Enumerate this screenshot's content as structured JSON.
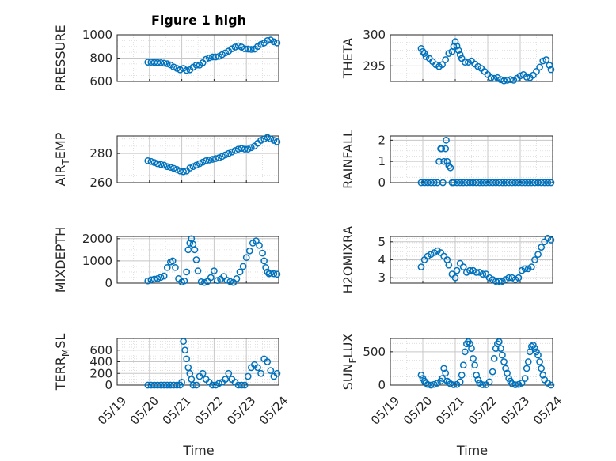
{
  "figure": {
    "title": "Figure 1 high"
  },
  "colors": {
    "marker": "#0072BD",
    "axis": "#262626",
    "grid": "#d9d9d9"
  },
  "chart_data": [
    {
      "type": "scatter",
      "id": "pressure",
      "title": "Figure 1 high",
      "ylabel": "PRESSURE",
      "xlabel": "",
      "ylim": [
        600,
        1000
      ],
      "yticks": [
        600,
        800,
        1000
      ],
      "grid": true,
      "x": [
        19.95,
        20.05,
        20.15,
        20.25,
        20.35,
        20.45,
        20.55,
        20.65,
        20.75,
        20.85,
        20.95,
        21.05,
        21.15,
        21.25,
        21.35,
        21.45,
        21.55,
        21.65,
        21.75,
        21.85,
        21.95,
        22.05,
        22.15,
        22.25,
        22.35,
        22.45,
        22.55,
        22.65,
        22.75,
        22.85,
        22.95,
        23.05,
        23.15,
        23.25,
        23.35,
        23.45,
        23.55,
        23.65,
        23.75,
        23.85,
        23.95
      ],
      "y": [
        765,
        765,
        763,
        762,
        760,
        757,
        752,
        742,
        724,
        712,
        700,
        712,
        695,
        700,
        722,
        740,
        740,
        760,
        790,
        802,
        810,
        810,
        815,
        830,
        845,
        860,
        880,
        895,
        905,
        895,
        880,
        878,
        875,
        878,
        900,
        918,
        930,
        950,
        955,
        940,
        930
      ]
    },
    {
      "type": "scatter",
      "id": "theta",
      "title": "",
      "ylabel": "THETA",
      "xlabel": "",
      "ylim": [
        292.5,
        300
      ],
      "yticks": [
        295,
        300
      ],
      "grid": true,
      "x": [
        19.95,
        20.0,
        20.05,
        20.1,
        20.2,
        20.3,
        20.4,
        20.5,
        20.6,
        20.7,
        20.8,
        20.9,
        20.95,
        21.0,
        21.05,
        21.1,
        21.15,
        21.2,
        21.3,
        21.4,
        21.5,
        21.6,
        21.7,
        21.8,
        21.9,
        22.0,
        22.1,
        22.2,
        22.3,
        22.4,
        22.5,
        22.6,
        22.7,
        22.8,
        22.9,
        23.0,
        23.1,
        23.2,
        23.3,
        23.4,
        23.5,
        23.6,
        23.7,
        23.8,
        23.9,
        23.95
      ],
      "y": [
        297.8,
        297.3,
        297.0,
        296.5,
        296.2,
        295.7,
        295.2,
        294.9,
        295.2,
        296.0,
        297.0,
        297.3,
        298.1,
        298.9,
        298.2,
        297.5,
        296.8,
        296.2,
        295.6,
        295.6,
        295.8,
        295.3,
        294.9,
        294.6,
        294.1,
        293.6,
        293.1,
        293.0,
        293.1,
        292.8,
        292.6,
        292.7,
        292.8,
        292.7,
        293.0,
        293.4,
        293.6,
        293.2,
        293.1,
        293.5,
        294.1,
        294.8,
        295.8,
        296.0,
        295.1,
        294.4
      ]
    },
    {
      "type": "scatter",
      "id": "air_temp",
      "title": "",
      "ylabel": "AIR_TEMP",
      "ylabel_main": "AIR",
      "ylabel_sub": "T",
      "ylabel_rest": "EMP",
      "xlabel": "",
      "ylim": [
        260,
        292
      ],
      "yticks": [
        260,
        280
      ],
      "grid": true,
      "x": [
        19.95,
        20.05,
        20.15,
        20.25,
        20.35,
        20.45,
        20.55,
        20.65,
        20.75,
        20.85,
        20.95,
        21.05,
        21.15,
        21.25,
        21.35,
        21.45,
        21.55,
        21.65,
        21.75,
        21.85,
        21.95,
        22.05,
        22.15,
        22.25,
        22.35,
        22.45,
        22.55,
        22.65,
        22.75,
        22.85,
        22.95,
        23.05,
        23.15,
        23.25,
        23.35,
        23.45,
        23.55,
        23.65,
        23.75,
        23.85,
        23.95
      ],
      "y": [
        275,
        274.5,
        273.8,
        273,
        272.5,
        272,
        271,
        270.5,
        269.8,
        269,
        268,
        267.5,
        268,
        270,
        271,
        272,
        273,
        274,
        275,
        275.5,
        276,
        276.5,
        277,
        278,
        279,
        280,
        281,
        282,
        283,
        283.5,
        283,
        283,
        284,
        285,
        287,
        289,
        290,
        291,
        290,
        289,
        288
      ]
    },
    {
      "type": "scatter",
      "id": "rainfall",
      "title": "",
      "ylabel": "RAINFALL",
      "xlabel": "",
      "ylim": [
        0,
        2.2
      ],
      "yticks": [
        0,
        1,
        2
      ],
      "grid": true,
      "x": [
        19.95,
        20.05,
        20.15,
        20.25,
        20.35,
        20.45,
        20.5,
        20.55,
        20.58,
        20.62,
        20.65,
        20.7,
        20.72,
        20.75,
        20.8,
        20.85,
        20.9,
        20.95,
        21.05,
        21.15,
        21.25,
        21.35,
        21.45,
        21.55,
        21.65,
        21.75,
        21.85,
        21.95,
        22.05,
        22.15,
        22.25,
        22.35,
        22.45,
        22.55,
        22.65,
        22.75,
        22.85,
        22.95,
        23.05,
        23.15,
        23.25,
        23.35,
        23.45,
        23.55,
        23.65,
        23.75,
        23.85,
        23.95
      ],
      "y": [
        0,
        0,
        0,
        0,
        0,
        0,
        1.0,
        1.6,
        1.6,
        0,
        1.0,
        1.6,
        2.0,
        1.0,
        0.8,
        0.7,
        0,
        0,
        0,
        0,
        0,
        0,
        0,
        0,
        0,
        0,
        0,
        0,
        0,
        0,
        0,
        0,
        0,
        0,
        0,
        0,
        0,
        0,
        0,
        0,
        0,
        0,
        0,
        0,
        0,
        0,
        0,
        0
      ]
    },
    {
      "type": "scatter",
      "id": "mixdepth",
      "title": "",
      "ylabel": "MIXDEPTH",
      "xlabel": "",
      "ylim": [
        0,
        2100
      ],
      "yticks": [
        0,
        1000,
        2000
      ],
      "grid": true,
      "x": [
        19.95,
        20.05,
        20.15,
        20.25,
        20.35,
        20.45,
        20.55,
        20.65,
        20.72,
        20.8,
        20.9,
        21.0,
        21.08,
        21.15,
        21.2,
        21.25,
        21.3,
        21.35,
        21.4,
        21.45,
        21.5,
        21.6,
        21.7,
        21.8,
        21.9,
        22.0,
        22.1,
        22.2,
        22.3,
        22.4,
        22.5,
        22.6,
        22.7,
        22.8,
        22.9,
        23.0,
        23.1,
        23.2,
        23.3,
        23.4,
        23.5,
        23.55,
        23.6,
        23.65,
        23.7,
        23.75,
        23.85,
        23.95
      ],
      "y": [
        100,
        150,
        180,
        200,
        260,
        320,
        700,
        950,
        1000,
        700,
        200,
        50,
        100,
        500,
        1500,
        1800,
        2000,
        1750,
        1500,
        1050,
        550,
        60,
        30,
        80,
        250,
        550,
        120,
        180,
        300,
        130,
        70,
        30,
        200,
        500,
        750,
        1150,
        1450,
        1800,
        1900,
        1700,
        1350,
        1000,
        700,
        500,
        420,
        450,
        420,
        400
      ]
    },
    {
      "type": "scatter",
      "id": "h2omixra",
      "title": "",
      "ylabel": "H2OMIXRA",
      "xlabel": "",
      "ylim": [
        2.7,
        5.3
      ],
      "yticks": [
        3,
        4,
        5
      ],
      "grid": true,
      "x": [
        19.95,
        20.05,
        20.15,
        20.25,
        20.35,
        20.45,
        20.55,
        20.65,
        20.75,
        20.8,
        20.9,
        21.0,
        21.05,
        21.15,
        21.25,
        21.35,
        21.45,
        21.55,
        21.65,
        21.75,
        21.85,
        21.95,
        22.05,
        22.15,
        22.25,
        22.35,
        22.45,
        22.55,
        22.65,
        22.75,
        22.85,
        22.95,
        23.05,
        23.15,
        23.25,
        23.35,
        23.45,
        23.55,
        23.65,
        23.75,
        23.85,
        23.95
      ],
      "y": [
        3.6,
        4.0,
        4.2,
        4.3,
        4.4,
        4.5,
        4.4,
        4.2,
        4.0,
        3.7,
        3.2,
        3.0,
        3.4,
        3.8,
        3.6,
        3.3,
        3.4,
        3.4,
        3.3,
        3.3,
        3.2,
        3.2,
        3.0,
        2.9,
        2.8,
        2.8,
        2.8,
        2.9,
        3.0,
        3.0,
        2.9,
        3.0,
        3.4,
        3.5,
        3.5,
        3.6,
        4.0,
        4.3,
        4.7,
        5.0,
        5.2,
        5.1
      ]
    },
    {
      "type": "scatter",
      "id": "terr_msl",
      "title": "",
      "ylabel": "TERR_MSL",
      "ylabel_main": "TERR",
      "ylabel_sub": "M",
      "ylabel_rest": "SL",
      "xlabel": "Time",
      "ylim": [
        0,
        800
      ],
      "yticks": [
        0,
        200,
        400,
        600
      ],
      "xticklabels": [
        "05/19",
        "05/20",
        "05/21",
        "05/22",
        "05/23",
        "05/24"
      ],
      "xticks": [
        19,
        20,
        21,
        22,
        23,
        24
      ],
      "xlim": [
        19,
        24
      ],
      "grid": true,
      "x": [
        19.95,
        20.05,
        20.15,
        20.25,
        20.35,
        20.45,
        20.55,
        20.65,
        20.75,
        20.85,
        20.95,
        21.0,
        21.05,
        21.1,
        21.15,
        21.2,
        21.25,
        21.3,
        21.35,
        21.45,
        21.55,
        21.65,
        21.75,
        21.85,
        21.95,
        22.05,
        22.15,
        22.25,
        22.35,
        22.45,
        22.55,
        22.65,
        22.75,
        22.85,
        22.95,
        23.05,
        23.15,
        23.25,
        23.35,
        23.45,
        23.55,
        23.65,
        23.75,
        23.85,
        23.95
      ],
      "y": [
        0,
        0,
        0,
        0,
        0,
        0,
        0,
        0,
        0,
        0,
        0,
        50,
        750,
        600,
        450,
        300,
        200,
        100,
        0,
        0,
        150,
        200,
        100,
        50,
        0,
        0,
        30,
        50,
        100,
        200,
        100,
        50,
        0,
        0,
        0,
        150,
        300,
        350,
        300,
        200,
        450,
        400,
        250,
        150,
        200
      ]
    },
    {
      "type": "scatter",
      "id": "sun_flux",
      "title": "",
      "ylabel": "SUN_FLUX",
      "ylabel_main": "SUN",
      "ylabel_sub": "F",
      "ylabel_rest": "LUX",
      "xlabel": "Time",
      "ylim": [
        0,
        700
      ],
      "yticks": [
        0,
        500
      ],
      "xticklabels": [
        "05/19",
        "05/20",
        "05/21",
        "05/22",
        "05/23",
        "05/24"
      ],
      "xticks": [
        19,
        20,
        21,
        22,
        23,
        24
      ],
      "xlim": [
        19,
        24
      ],
      "grid": true,
      "x": [
        19.95,
        20.0,
        20.05,
        20.1,
        20.15,
        20.25,
        20.35,
        20.45,
        20.55,
        20.6,
        20.65,
        20.7,
        20.75,
        20.8,
        20.85,
        20.95,
        21.05,
        21.15,
        21.2,
        21.25,
        21.3,
        21.35,
        21.4,
        21.45,
        21.5,
        21.55,
        21.6,
        21.65,
        21.7,
        21.75,
        21.85,
        21.95,
        22.05,
        22.15,
        22.2,
        22.25,
        22.3,
        22.35,
        22.4,
        22.45,
        22.5,
        22.55,
        22.6,
        22.65,
        22.7,
        22.75,
        22.85,
        22.95,
        23.05,
        23.15,
        23.2,
        23.25,
        23.3,
        23.35,
        23.4,
        23.45,
        23.5,
        23.55,
        23.6,
        23.65,
        23.7,
        23.75,
        23.85,
        23.95
      ],
      "y": [
        150,
        100,
        60,
        30,
        10,
        0,
        10,
        30,
        60,
        100,
        250,
        180,
        60,
        40,
        20,
        5,
        10,
        50,
        150,
        300,
        500,
        620,
        650,
        620,
        550,
        400,
        300,
        150,
        80,
        30,
        5,
        5,
        50,
        200,
        400,
        550,
        620,
        650,
        550,
        450,
        350,
        250,
        180,
        100,
        60,
        20,
        5,
        10,
        30,
        100,
        250,
        350,
        500,
        580,
        600,
        550,
        500,
        450,
        350,
        250,
        150,
        80,
        30,
        0
      ]
    }
  ]
}
